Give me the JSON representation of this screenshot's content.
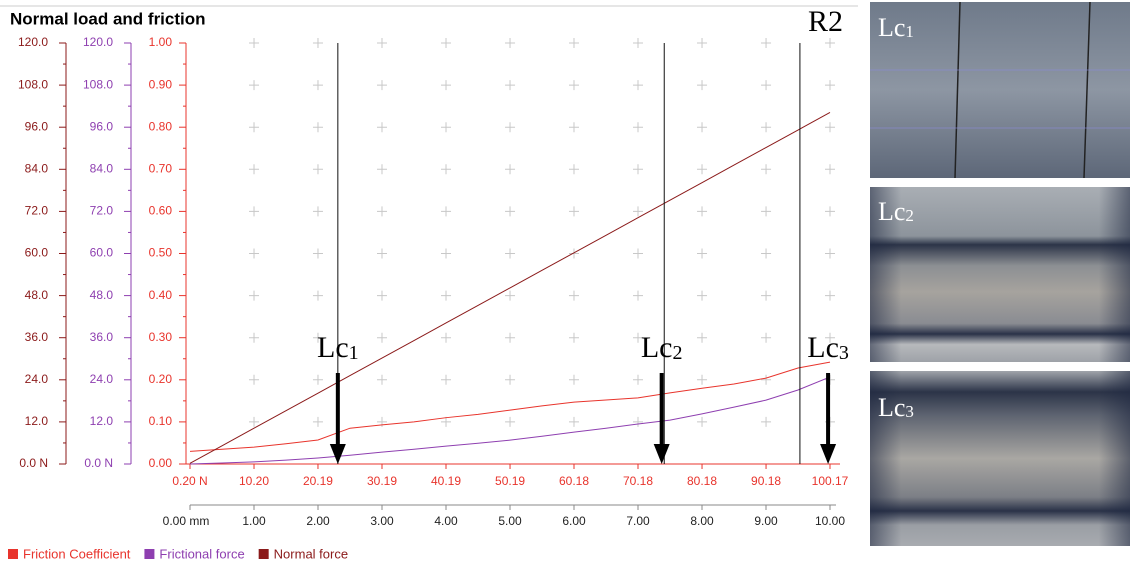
{
  "chart_data": {
    "type": "line",
    "title": "Normal load and friction",
    "subtitle": "R2",
    "x": [
      0,
      0.5,
      1,
      1.5,
      2,
      2.5,
      3,
      3.5,
      4,
      4.5,
      5,
      5.5,
      6,
      6.5,
      7,
      7.5,
      8,
      8.5,
      9,
      9.5,
      10
    ],
    "xlim": [
      0,
      10
    ],
    "xticks": [
      {
        "value": 0,
        "label": "0.00 mm"
      },
      {
        "value": 1,
        "label": "1.00"
      },
      {
        "value": 2,
        "label": "2.00"
      },
      {
        "value": 3,
        "label": "3.00"
      },
      {
        "value": 4,
        "label": "4.00"
      },
      {
        "value": 5,
        "label": "5.00"
      },
      {
        "value": 6,
        "label": "6.00"
      },
      {
        "value": 7,
        "label": "7.00"
      },
      {
        "value": 8,
        "label": "8.00"
      },
      {
        "value": 9,
        "label": "9.00"
      },
      {
        "value": 10,
        "label": "10.00"
      }
    ],
    "x2lim": [
      0.2,
      100.17
    ],
    "x2ticks": [
      {
        "value": 0.2,
        "label": "0.20 N"
      },
      {
        "value": 10.2,
        "label": "10.20"
      },
      20.19,
      30.19,
      40.19,
      50.19,
      60.18,
      70.18,
      80.18,
      90.18,
      100.17
    ],
    "ylim": [
      0,
      120
    ],
    "yticks": [
      {
        "value": 0,
        "label": "0.0 N"
      },
      {
        "value": 12,
        "label": "12.0"
      },
      {
        "value": 24,
        "label": "24.0"
      },
      {
        "value": 36,
        "label": "36.0"
      },
      {
        "value": 48,
        "label": "48.0"
      },
      {
        "value": 60,
        "label": "60.0"
      },
      {
        "value": 72,
        "label": "72.0"
      },
      {
        "value": 84,
        "label": "84.0"
      },
      {
        "value": 96,
        "label": "96.0"
      },
      {
        "value": 108,
        "label": "108.0"
      },
      {
        "value": 120,
        "label": "120.0"
      }
    ],
    "y2lim": [
      0,
      120
    ],
    "y2ticks": [
      {
        "value": 0,
        "label": "0.0 N"
      },
      {
        "value": 12,
        "label": "12.0"
      },
      {
        "value": 24,
        "label": "24.0"
      },
      {
        "value": 36,
        "label": "36.0"
      },
      {
        "value": 48,
        "label": "48.0"
      },
      {
        "value": 60,
        "label": "60.0"
      },
      {
        "value": 72,
        "label": "72.0"
      },
      {
        "value": 84,
        "label": "84.0"
      },
      {
        "value": 96,
        "label": "96.0"
      },
      {
        "value": 108,
        "label": "108.0"
      },
      {
        "value": 120,
        "label": "120.0"
      }
    ],
    "y3lim": [
      0,
      1
    ],
    "y3ticks": [
      {
        "value": 0,
        "label": "0.00"
      },
      {
        "value": 0.1,
        "label": "0.10"
      },
      {
        "value": 0.2,
        "label": "0.20"
      },
      {
        "value": 0.3,
        "label": "0.30"
      },
      {
        "value": 0.4,
        "label": "0.40"
      },
      {
        "value": 0.5,
        "label": "0.50"
      },
      {
        "value": 0.6,
        "label": "0.60"
      },
      {
        "value": 0.7,
        "label": "0.70"
      },
      {
        "value": 0.8,
        "label": "0.80"
      },
      {
        "value": 0.9,
        "label": "0.90"
      },
      {
        "value": 1,
        "label": "1.00"
      }
    ],
    "grid": true,
    "series": [
      {
        "name": "Friction Coefficient",
        "color": "#e8342c",
        "axis": "y3",
        "values": [
          0.03,
          0.035,
          0.04,
          0.048,
          0.057,
          0.085,
          0.093,
          0.1,
          0.11,
          0.118,
          0.128,
          0.138,
          0.147,
          0.152,
          0.157,
          0.169,
          0.18,
          0.19,
          0.204,
          0.228,
          0.242
        ]
      },
      {
        "name": "Frictional force",
        "color": "#8e3fb0",
        "axis": "y2",
        "values": [
          0,
          0.3,
          0.6,
          1.1,
          1.7,
          2.5,
          3.4,
          4.2,
          5.1,
          5.9,
          6.8,
          7.9,
          9.1,
          10.2,
          11.4,
          12.5,
          14.3,
          16.2,
          18.2,
          21.1,
          24.8
        ]
      },
      {
        "name": "Normal force",
        "color": "#8b1a1a",
        "axis": "y",
        "values": [
          0.2,
          5.2,
          10.2,
          15.2,
          20.2,
          25.2,
          30.2,
          35.2,
          40.2,
          45.2,
          50.2,
          55.2,
          60.2,
          65.2,
          70.2,
          75.2,
          80.2,
          85.2,
          90.2,
          95.2,
          100.2
        ]
      }
    ],
    "annotations": [
      {
        "text": "Lc",
        "sub": "1",
        "line_x": 2.31,
        "arrow_x": 2.31
      },
      {
        "text": "Lc",
        "sub": "2",
        "line_x": 7.41,
        "arrow_x": 7.37
      },
      {
        "text": "Lc",
        "sub": "3",
        "line_x": 9.53,
        "arrow_x": 9.97
      }
    ]
  },
  "images": [
    {
      "text": "Lc",
      "sub": "1"
    },
    {
      "text": "Lc",
      "sub": "2"
    },
    {
      "text": "Lc",
      "sub": "3"
    }
  ]
}
